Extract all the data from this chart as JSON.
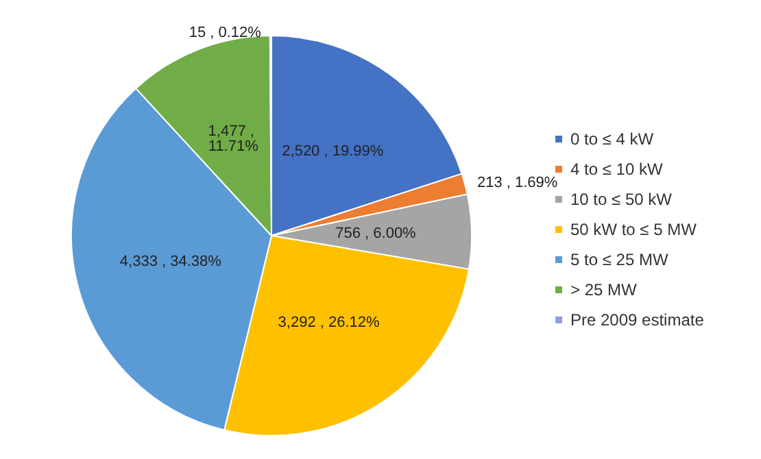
{
  "chart_data": {
    "type": "pie",
    "categories": [
      "0 to ≤ 4 kW",
      "4 to ≤ 10 kW",
      "10 to ≤ 50 kW",
      "50 kW to ≤ 5 MW",
      "5 to ≤ 25 MW",
      "> 25 MW",
      "Pre 2009 estimate"
    ],
    "values": [
      2520,
      213,
      756,
      3292,
      4333,
      1477,
      15
    ],
    "value_labels": [
      "2,520 , 19.99%",
      "213 , 1.69%",
      "756 , 6.00%",
      "3,292 , 26.12%",
      "4,333 , 34.38%",
      "1,477 , 11.71%",
      "15 , 0.12%"
    ],
    "colors": [
      "#4472c4",
      "#ed7d31",
      "#a5a5a5",
      "#ffc000",
      "#5b9bd5",
      "#70ad47",
      "#8e9fe0"
    ],
    "legend": "right"
  }
}
